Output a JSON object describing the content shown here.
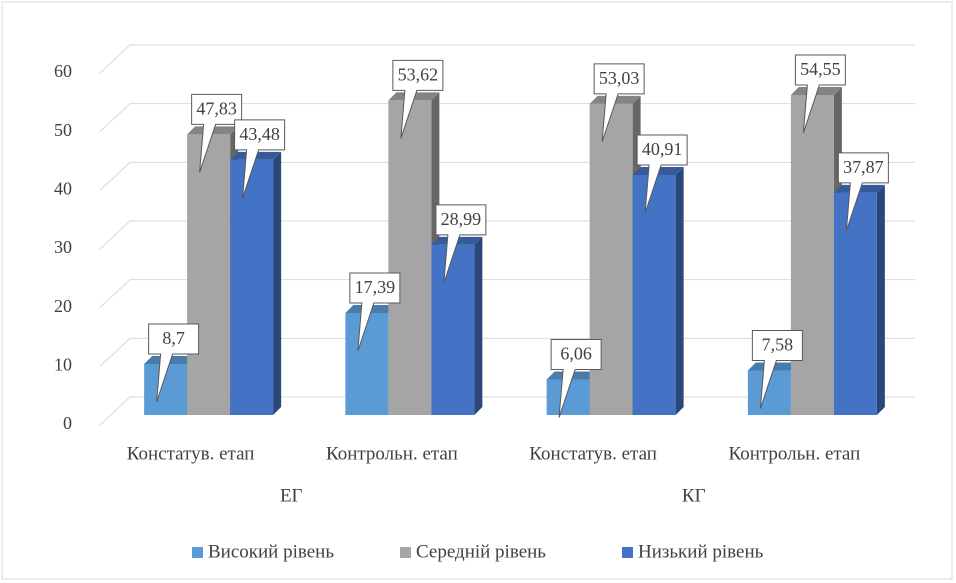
{
  "chart_data": {
    "type": "bar3d",
    "categories": [
      "Констатув. етап",
      "Контрольн. етап",
      "Констатув. етап",
      "Контрольн. етап"
    ],
    "category_groups": [
      "ЕГ",
      "КГ"
    ],
    "series": [
      {
        "name": "Високий рівень",
        "color": "#5b9bd5",
        "values": [
          8.7,
          17.39,
          6.06,
          7.58
        ],
        "value_labels": [
          "8,7",
          "17,39",
          "6,06",
          "7,58"
        ]
      },
      {
        "name": "Середній рівень",
        "color": "#a5a5a5",
        "values": [
          47.83,
          53.62,
          53.03,
          54.55
        ],
        "value_labels": [
          "47,83",
          "53,62",
          "53,03",
          "54,55"
        ]
      },
      {
        "name": "Низький рівень",
        "color": "#4472c4",
        "values": [
          43.48,
          28.99,
          40.91,
          37.87
        ],
        "value_labels": [
          "43,48",
          "28,99",
          "40,91",
          "37,87"
        ]
      }
    ],
    "ylim": [
      0,
      60
    ],
    "yticks": [
      0,
      10,
      20,
      30,
      40,
      50,
      60
    ],
    "grid": true,
    "legend": "bottom"
  }
}
